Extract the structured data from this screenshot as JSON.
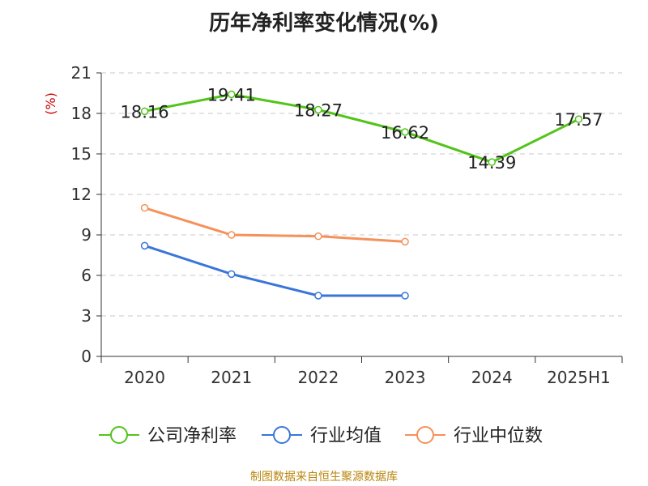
{
  "title": "历年净利率变化情况(%)",
  "source": "制图数据来自恒生聚源数据库",
  "chart_data": {
    "type": "line",
    "title": "历年净利率变化情况(%)",
    "ylabel": "(%)",
    "xlabel": "",
    "categories": [
      "2020",
      "2021",
      "2022",
      "2023",
      "2024",
      "2025H1"
    ],
    "ylim": [
      0,
      21
    ],
    "yticks": [
      0,
      3,
      6,
      9,
      12,
      15,
      18,
      21
    ],
    "grid": true,
    "legend_position": "bottom",
    "series": [
      {
        "name": "公司净利率",
        "color": "#52c41a",
        "values": [
          18.16,
          19.41,
          18.27,
          16.62,
          14.39,
          17.57
        ],
        "labels": [
          "18.16",
          "19.41",
          "18.27",
          "16.62",
          "14.39",
          "17.57"
        ]
      },
      {
        "name": "行业均值",
        "color": "#3a76d8",
        "values": [
          8.2,
          6.1,
          4.5,
          4.5,
          null,
          null
        ]
      },
      {
        "name": "行业中位数",
        "color": "#f5915a",
        "values": [
          11.0,
          9.0,
          8.9,
          8.5,
          null,
          null
        ]
      }
    ]
  }
}
